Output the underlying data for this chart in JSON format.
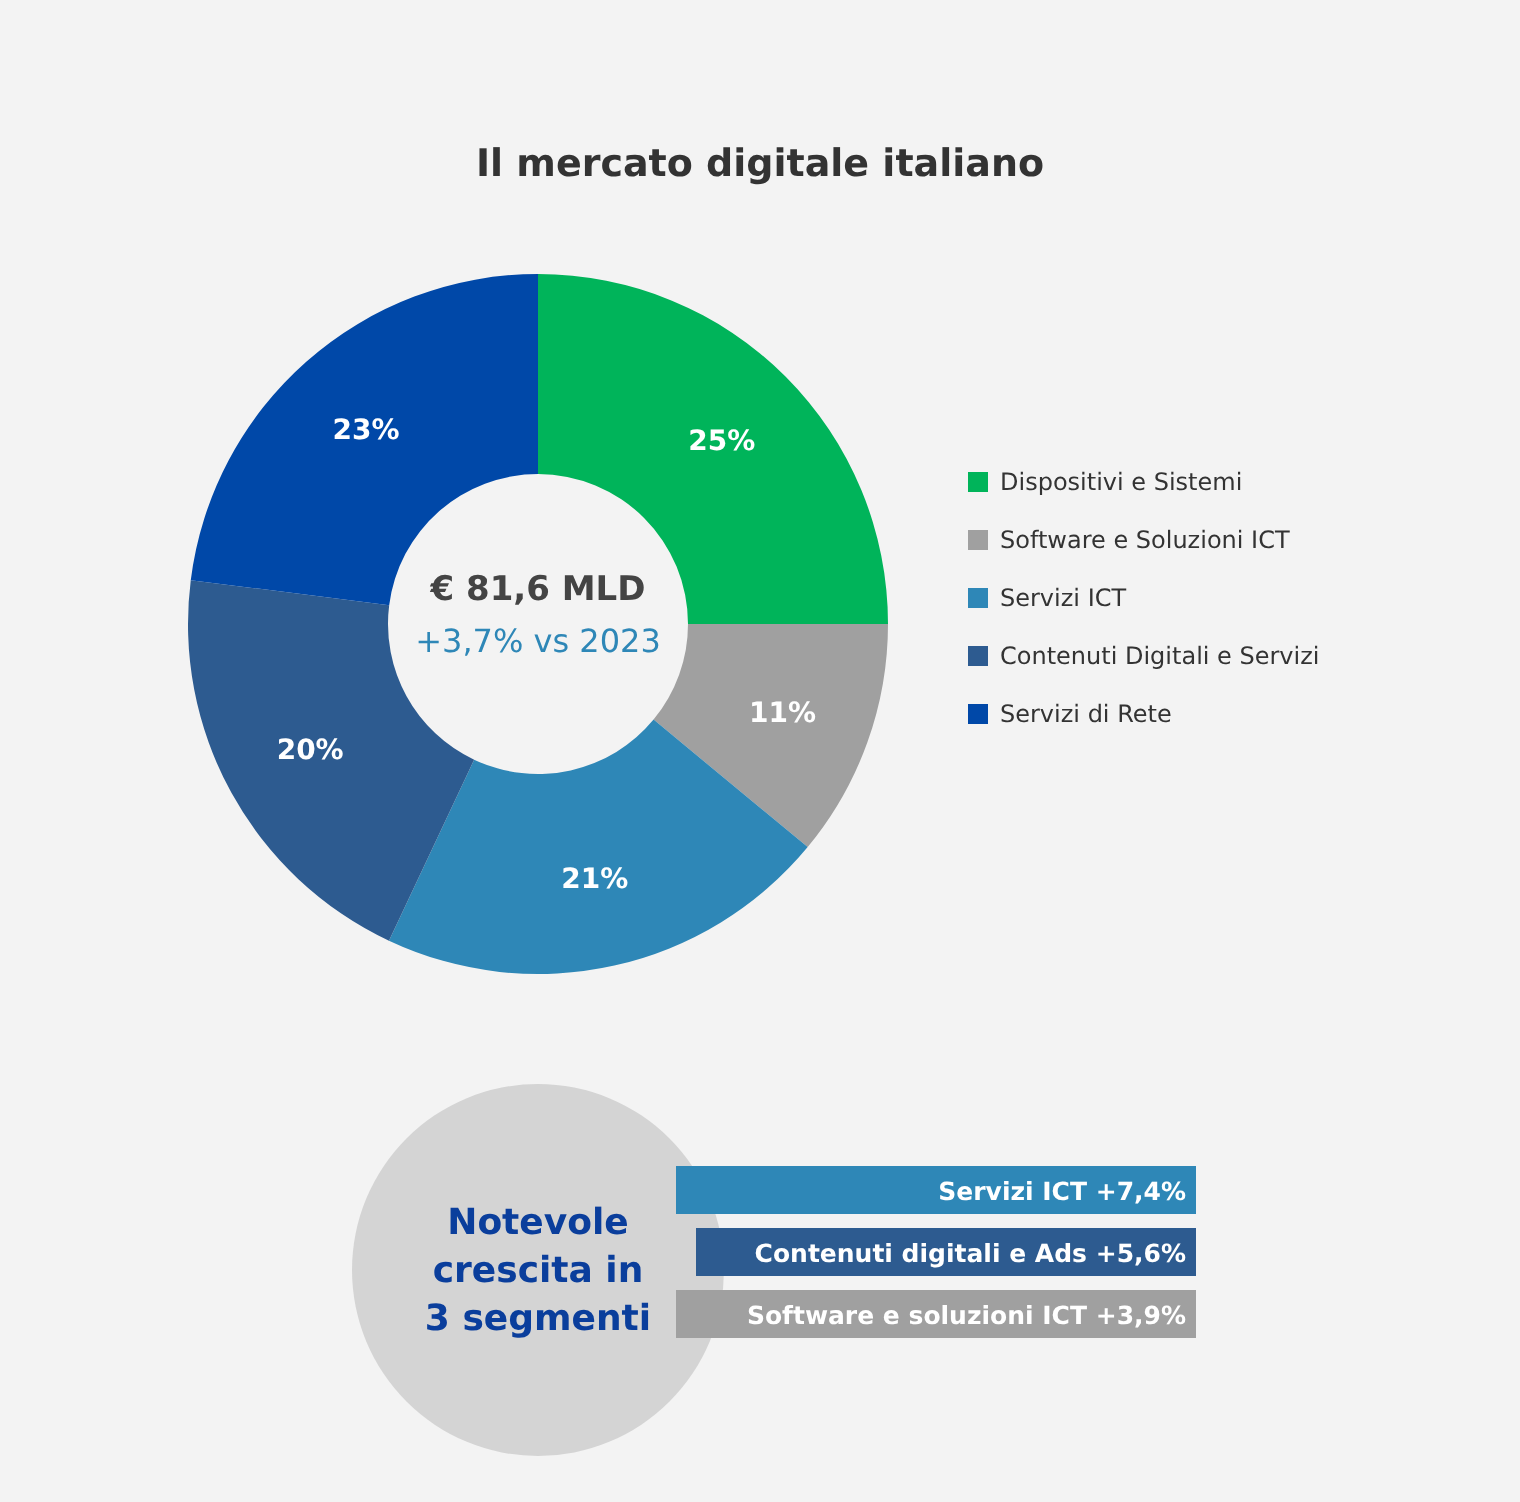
{
  "chart_data": [
    {
      "type": "donut",
      "title": "Il mercato digitale italiano",
      "categories": [
        "Dispositivi e Sistemi",
        "Software e Soluzioni ICT",
        "Servizi ICT",
        "Contenuti Digitali e Servizi",
        "Servizi di Rete"
      ],
      "values": [
        25,
        11,
        21,
        20,
        23
      ],
      "colors": [
        "#00b45a",
        "#a0a0a0",
        "#2e87b7",
        "#2d5b90",
        "#0048a8"
      ],
      "value_labels": [
        "25%",
        "11%",
        "21%",
        "20%",
        "23%"
      ],
      "annotations": [
        "€ 81,6 MLD",
        "+3,7% vs 2023"
      ],
      "legend": "right"
    },
    {
      "type": "other",
      "title": "Notevole crescita in 3 segmenti",
      "annotations": [
        "Servizi ICT +7,4%",
        "Contenuti digitali e Ads +5,6%",
        "Software e soluzioni ICT +3,9%"
      ]
    }
  ]
}
